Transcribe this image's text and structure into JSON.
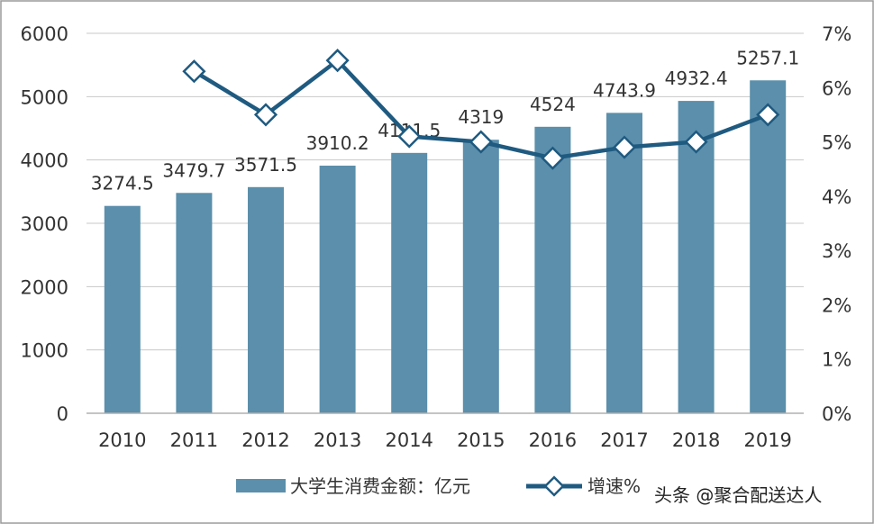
{
  "chart_data": {
    "type": "bar",
    "categories": [
      "2010",
      "2011",
      "2012",
      "2013",
      "2014",
      "2015",
      "2016",
      "2017",
      "2018",
      "2019"
    ],
    "series": [
      {
        "name": "大学生消费金额：亿元",
        "type": "bar",
        "axis": "left",
        "values": [
          3274.5,
          3479.7,
          3571.5,
          3910.2,
          4111.5,
          4319,
          4524,
          4743.9,
          4932.4,
          5257.1
        ],
        "labels": [
          "3274.5",
          "3479.7",
          "3571.5",
          "3910.2",
          "4111.5",
          "4319",
          "4524",
          "4743.9",
          "4932.4",
          "5257.1"
        ]
      },
      {
        "name": "增速%",
        "type": "line",
        "axis": "right",
        "values": [
          null,
          6.3,
          5.5,
          6.5,
          5.1,
          5.0,
          4.7,
          4.9,
          5.0,
          5.5
        ]
      }
    ],
    "y_left": {
      "min": 0,
      "max": 6000,
      "ticks": [
        "0",
        "1000",
        "2000",
        "3000",
        "4000",
        "5000",
        "6000"
      ]
    },
    "y_right": {
      "min": 0,
      "max": 7,
      "ticks": [
        "0%",
        "1%",
        "2%",
        "3%",
        "4%",
        "5%",
        "6%",
        "7%"
      ]
    },
    "grid": true,
    "legend_position": "bottom",
    "colors": {
      "bar": "#5b8fab",
      "line": "#1f5a80",
      "marker_fill": "#ffffff",
      "grid": "#c8c8c8"
    }
  },
  "watermark": "头条 @聚合配送达人"
}
